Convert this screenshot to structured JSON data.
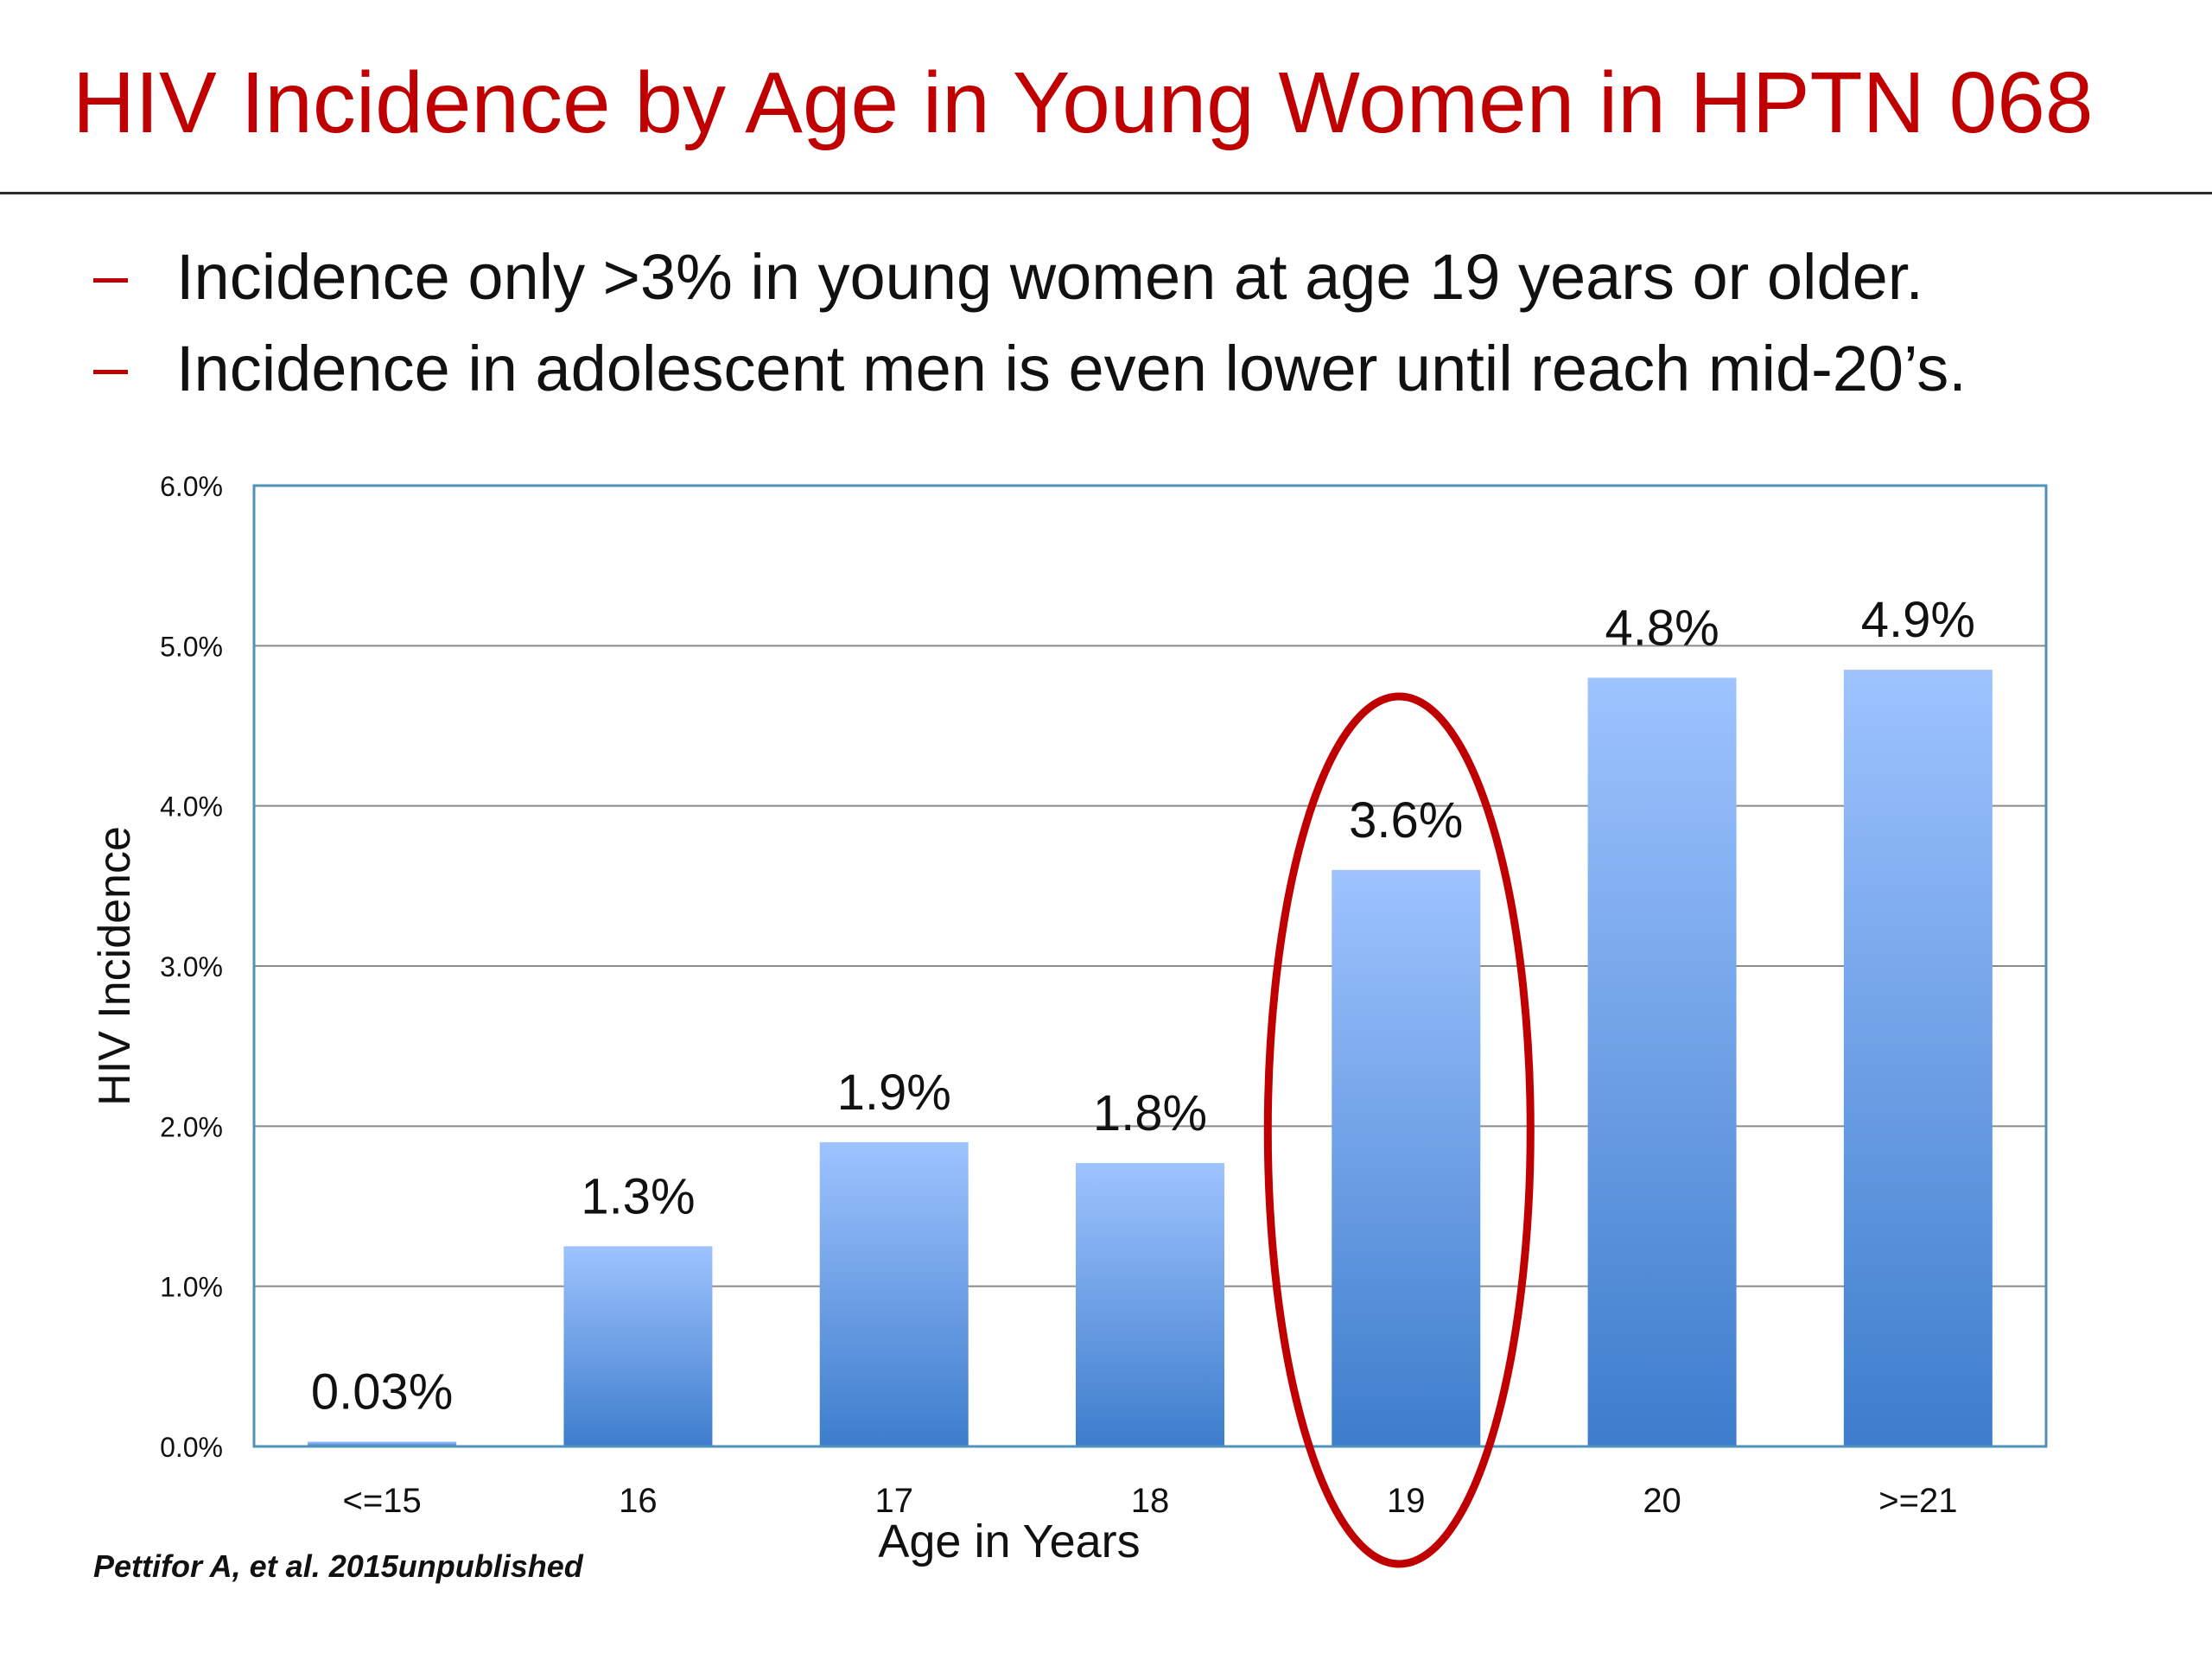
{
  "slide": {
    "title": "HIV Incidence by Age in Young Women in HPTN 068",
    "bullets": [
      {
        "marker": "dash",
        "text": "Incidence only >3% in young women at age 19 years or older."
      },
      {
        "marker": "dash",
        "text": "Incidence in adolescent men is even lower until reach mid-20’s."
      }
    ],
    "source": "Pettifor A, et al. 2015unpublished"
  },
  "colors": {
    "title": "#c00000",
    "bar_top": "#9ec3ff",
    "bar_bottom": "#3d7dcc",
    "ellipse": "#c00000",
    "plot_border": "#4f93b8",
    "gridline": "#8a8a8a"
  },
  "chart_data": {
    "type": "bar",
    "title": "",
    "xlabel": "Age in Years",
    "ylabel": "HIV Incidence",
    "categories": [
      "<=15",
      "16",
      "17",
      "18",
      "19",
      "20",
      ">=21"
    ],
    "values": [
      0.03,
      1.25,
      1.9,
      1.77,
      3.6,
      4.8,
      4.85
    ],
    "data_labels": [
      "0.03%",
      "1.3%",
      "1.9%",
      "1.8%",
      "3.6%",
      "4.8%",
      "4.9%"
    ],
    "ylim": [
      0,
      6
    ],
    "yticks": [
      "0.0%",
      "1.0%",
      "2.0%",
      "3.0%",
      "4.0%",
      "5.0%",
      "6.0%"
    ],
    "grid": true,
    "legend": "none",
    "annotation": {
      "shape": "ellipse",
      "category": "19"
    }
  }
}
